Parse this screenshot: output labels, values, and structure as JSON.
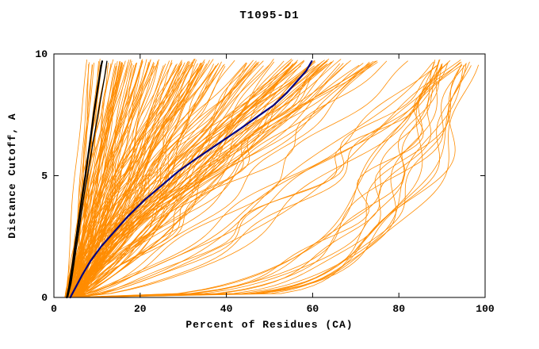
{
  "chart_data": {
    "type": "line",
    "title": "T1095-D1",
    "xlabel": "Percent of Residues (CA)",
    "ylabel": "Distance Cutoff, A",
    "xlim": [
      0,
      100
    ],
    "ylim": [
      0,
      10
    ],
    "x_ticks": [
      0,
      20,
      40,
      60,
      80,
      100
    ],
    "y_ticks": [
      0,
      5,
      10
    ],
    "grid": false,
    "legend": "none",
    "colors": {
      "ensemble": "#ff8c00",
      "highlight": "#000080",
      "reference": "#000000",
      "frame": "#000000",
      "background": "#ffffff"
    },
    "series": [
      {
        "name": "reference-model-1",
        "color": "#000000",
        "width": 2.2,
        "points": [
          [
            3.0,
            0
          ],
          [
            3.5,
            0.4
          ],
          [
            4.2,
            1.2
          ],
          [
            5.0,
            2.2
          ],
          [
            5.8,
            3.2
          ],
          [
            6.6,
            4.2
          ],
          [
            7.3,
            5.0
          ],
          [
            8.0,
            5.9
          ],
          [
            8.7,
            6.8
          ],
          [
            9.3,
            7.6
          ],
          [
            10.0,
            8.4
          ],
          [
            10.6,
            9.1
          ],
          [
            11.0,
            9.55
          ],
          [
            11.2,
            9.7
          ]
        ]
      },
      {
        "name": "reference-model-2",
        "color": "#000000",
        "width": 1.3,
        "points": [
          [
            3.2,
            0
          ],
          [
            4.0,
            0.6
          ],
          [
            5.0,
            1.8
          ],
          [
            6.0,
            3.0
          ],
          [
            7.0,
            4.2
          ],
          [
            8.0,
            5.2
          ],
          [
            9.0,
            6.3
          ],
          [
            10.0,
            7.3
          ],
          [
            11.0,
            8.3
          ],
          [
            11.8,
            9.1
          ],
          [
            12.3,
            9.7
          ]
        ]
      },
      {
        "name": "highlighted-model",
        "color": "#000080",
        "width": 2.2,
        "points": [
          [
            3.8,
            0
          ],
          [
            5.0,
            0.4
          ],
          [
            6.5,
            0.9
          ],
          [
            8.5,
            1.5
          ],
          [
            11,
            2.1
          ],
          [
            14,
            2.7
          ],
          [
            17,
            3.3
          ],
          [
            21,
            4.0
          ],
          [
            25,
            4.6
          ],
          [
            29,
            5.2
          ],
          [
            33,
            5.7
          ],
          [
            38,
            6.3
          ],
          [
            43,
            6.9
          ],
          [
            47,
            7.4
          ],
          [
            51,
            7.9
          ],
          [
            54,
            8.4
          ],
          [
            56.5,
            8.9
          ],
          [
            58.5,
            9.3
          ],
          [
            59.8,
            9.7
          ]
        ]
      }
    ],
    "orange_ensemble": {
      "color": "#ff8c00",
      "count_main": 170,
      "count_bridge": 10,
      "count_right_cluster": 18,
      "seed": 20231095,
      "x_start_range": [
        2.5,
        6.5
      ],
      "x_top_range_main": [
        7.5,
        78
      ],
      "x_top_range_bridge": [
        78,
        95
      ],
      "x_top_range_right": [
        88,
        99
      ],
      "shape_power_main": [
        0.75,
        1.35
      ],
      "shape_power_bridge": [
        0.45,
        0.8
      ],
      "shape_power_right": [
        0.13,
        0.32
      ],
      "y_top_range": [
        9.5,
        9.8
      ]
    }
  }
}
